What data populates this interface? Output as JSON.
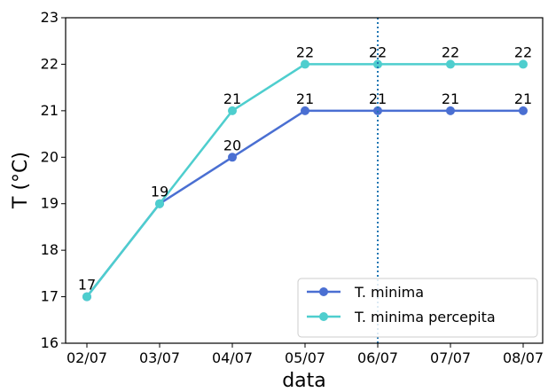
{
  "chart_data": {
    "type": "line",
    "xlabel": "data",
    "ylabel": "T (°C)",
    "ylim": [
      16,
      23
    ],
    "yticks": [
      "16",
      "17",
      "18",
      "19",
      "20",
      "21",
      "22",
      "23"
    ],
    "categories": [
      "02/07",
      "03/07",
      "04/07",
      "05/07",
      "06/07",
      "07/07",
      "08/07"
    ],
    "vline_category": "06/07",
    "grid": false,
    "legend_position": "bottom-right",
    "series": [
      {
        "name": "T. minima",
        "color": "#4a6fd2",
        "values": [
          17,
          19,
          20,
          21,
          21,
          21,
          21
        ],
        "labels": [
          "",
          "",
          "20",
          "21",
          "21",
          "21",
          "21"
        ]
      },
      {
        "name": "T. minima percepita",
        "color": "#4ecece",
        "values": [
          17,
          19,
          21,
          22,
          22,
          22,
          22
        ],
        "labels": [
          "17",
          "19",
          "21",
          "22",
          "22",
          "22",
          "22"
        ]
      }
    ],
    "colors": {
      "vline": "#1f77b4"
    }
  }
}
